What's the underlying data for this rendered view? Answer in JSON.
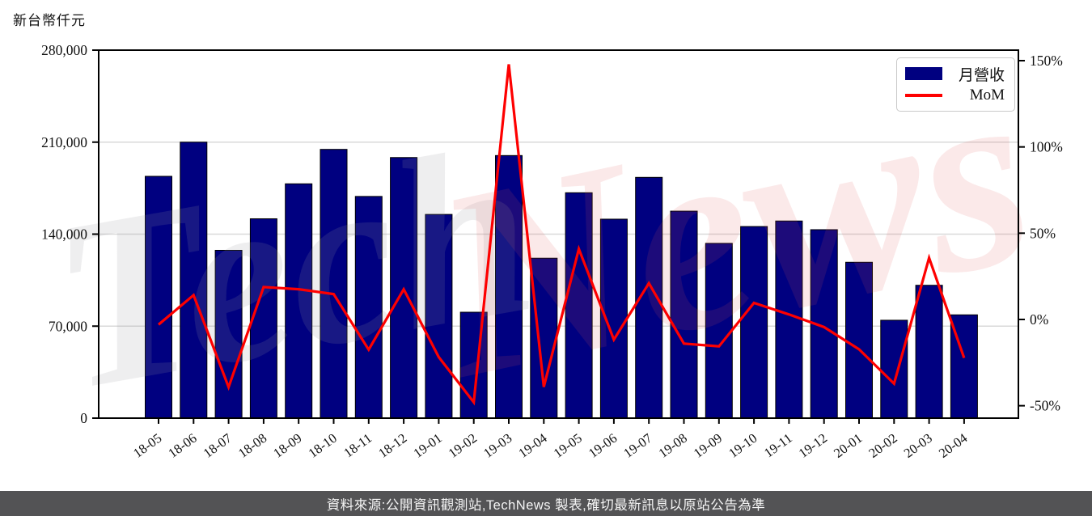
{
  "page": {
    "y_axis_title": "新台幣仟元",
    "watermark_part1": "Tech",
    "watermark_part2": "News"
  },
  "legend": {
    "revenue_label": "月營收",
    "mom_label": "MoM"
  },
  "footer": {
    "text": "資料來源:公開資訊觀測站,TechNews 製表,確切最新訊息以原站公告為準"
  },
  "colors": {
    "bar": "#000080",
    "line": "#fe0000",
    "grid": "#d9d9d9",
    "spine": "#000000",
    "footer_bg": "#535355",
    "watermark_gray": "rgba(150,150,158,0.16)",
    "watermark_pink": "rgba(226,88,88,0.13)"
  },
  "chart_data": {
    "type": "bar",
    "title": "",
    "categories": [
      "18-05",
      "18-06",
      "18-07",
      "18-08",
      "18-09",
      "18-10",
      "18-11",
      "18-12",
      "19-01",
      "19-02",
      "19-03",
      "19-04",
      "19-05",
      "19-06",
      "19-07",
      "19-08",
      "19-09",
      "19-10",
      "19-11",
      "19-12",
      "20-01",
      "20-02",
      "20-03",
      "20-04"
    ],
    "series": [
      {
        "name": "月營收",
        "type": "bar",
        "axis": "left",
        "unit": "新台幣仟元",
        "color": "#000080",
        "values": [
          184000,
          210000,
          127700,
          151700,
          178300,
          204500,
          168700,
          198300,
          155000,
          80600,
          199800,
          121700,
          171500,
          151400,
          183200,
          157500,
          133000,
          145800,
          150000,
          143400,
          118600,
          74500,
          101100,
          78600
        ]
      },
      {
        "name": "MoM",
        "type": "line",
        "axis": "right",
        "unit": "%",
        "color": "#fe0000",
        "values": [
          -3.0,
          14.1,
          -39.2,
          18.8,
          17.5,
          14.7,
          -17.5,
          17.5,
          -21.8,
          -48.0,
          147.9,
          -39.1,
          40.9,
          -11.7,
          21.0,
          -14.0,
          -15.6,
          9.6,
          2.9,
          -4.4,
          -17.3,
          -37.2,
          35.7,
          -22.3
        ]
      }
    ],
    "left_axis": {
      "title": "新台幣仟元",
      "range": [
        0,
        280000
      ],
      "ticks": [
        0,
        70000,
        140000,
        210000,
        280000
      ],
      "tick_labels": [
        "0",
        "70,000",
        "140,000",
        "210,000",
        "280,000"
      ],
      "gridline_ticks": [
        70000,
        140000,
        210000
      ]
    },
    "right_axis": {
      "range": [
        -57.2,
        156.1
      ],
      "ticks": [
        -50,
        0,
        50,
        100,
        150
      ],
      "tick_labels": [
        "-50%",
        "0%",
        "50%",
        "100%",
        "150%"
      ]
    },
    "legend_position": "upper right",
    "grid": true
  }
}
